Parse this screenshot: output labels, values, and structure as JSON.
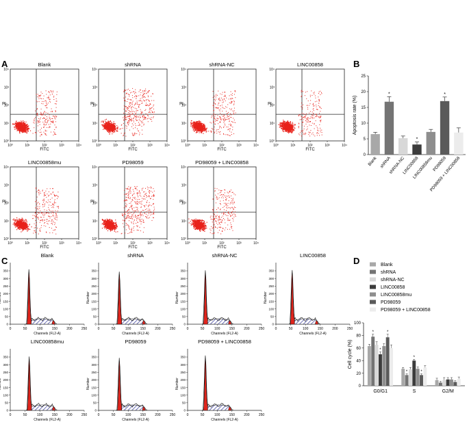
{
  "colors": {
    "dots": "#e8221b",
    "peak": "#e0251d",
    "hatch": "#4b4fa6",
    "grid": "#222222",
    "bars": [
      "#a8a8a8",
      "#747474",
      "#d8d8d8",
      "#3c3c3c",
      "#8e8e8e",
      "#5a5a5a",
      "#ececec"
    ]
  },
  "panels": {
    "A": "A",
    "B": "B",
    "C": "C",
    "D": "D"
  },
  "flow": {
    "xlabel": "FITC",
    "ylabel": "PI",
    "ticks": [
      "10⁰",
      "10¹",
      "10²",
      "10³",
      "10⁴"
    ],
    "titles": [
      "Blank",
      "shRNA",
      "shRNA-NC",
      "LINC00858",
      "LINC00858mu",
      "PD98059",
      "PD98059 + LINC00858"
    ],
    "upper_scatter_level": [
      0.25,
      0.85,
      0.35,
      0.2,
      0.35,
      0.85,
      0.35
    ]
  },
  "cellcycle_hist": {
    "xlabel": "Channels (FL2-A)",
    "ylabel": "Number",
    "xticks": [
      "0",
      "50",
      "100",
      "150",
      "200",
      "250"
    ],
    "yticks": [
      "0",
      "50",
      "100",
      "150",
      "200",
      "250",
      "300",
      "350"
    ],
    "titles": [
      "Blank",
      "shRNA",
      "shRNA-NC",
      "LINC00858",
      "LINC00858mu",
      "PD98059",
      "PD98059 + LINC00858"
    ],
    "peak_channel": [
      63,
      70,
      60,
      55,
      64,
      70,
      60
    ],
    "peak_height": [
      345,
      330,
      338,
      340,
      338,
      330,
      345
    ]
  },
  "chart_data": [
    {
      "type": "bar",
      "panel": "B",
      "ylabel": "Apoptosis rate (%)",
      "ylim": [
        0,
        25
      ],
      "yticks": [
        0,
        5,
        10,
        15,
        20,
        25
      ],
      "categories": [
        "Blank",
        "shRNA",
        "shRNA-NC",
        "LINC00858",
        "LINC00858mu",
        "PD98059",
        "PD98059 + LINC00858"
      ],
      "values": [
        6.5,
        16.8,
        5.2,
        3.2,
        7.2,
        17.0,
        7.0
      ],
      "errors": [
        0.6,
        1.6,
        0.7,
        0.8,
        0.8,
        1.3,
        1.5
      ],
      "significance": [
        "",
        "*",
        "",
        "*",
        "",
        "*",
        ""
      ]
    },
    {
      "type": "bar",
      "panel": "D",
      "ylabel": "Cell cycle (%)",
      "ylim": [
        0,
        100
      ],
      "yticks": [
        0,
        20,
        40,
        60,
        80,
        100
      ],
      "categories": [
        "G0/G1",
        "S",
        "G2/M"
      ],
      "legend_position": "top",
      "series": [
        {
          "name": "Blank",
          "values": [
            63,
            27,
            9
          ],
          "errors": [
            3,
            2,
            3
          ]
        },
        {
          "name": "shRNA",
          "values": [
            78,
            17,
            5
          ],
          "errors": [
            4,
            2,
            2
          ]
        },
        {
          "name": "shRNA-NC",
          "values": [
            65,
            26,
            9
          ],
          "errors": [
            5,
            3,
            4
          ]
        },
        {
          "name": "LINC00858",
          "values": [
            50,
            40,
            10
          ],
          "errors": [
            4,
            2,
            3
          ]
        },
        {
          "name": "LINC00858mu",
          "values": [
            63,
            27,
            10
          ],
          "errors": [
            4,
            3,
            3
          ]
        },
        {
          "name": "PD98059",
          "values": [
            77,
            17,
            6
          ],
          "errors": [
            5,
            2,
            2
          ]
        },
        {
          "name": "PD98059 + LINC00858",
          "values": [
            60,
            29,
            11
          ],
          "errors": [
            5,
            3,
            3
          ]
        }
      ],
      "significance": [
        [
          "",
          "*",
          "",
          "*",
          "",
          "*",
          ""
        ],
        [
          "",
          "*",
          "",
          "*",
          "",
          "*",
          ""
        ],
        [
          "",
          "",
          "",
          "",
          "",
          "",
          ""
        ]
      ]
    }
  ]
}
